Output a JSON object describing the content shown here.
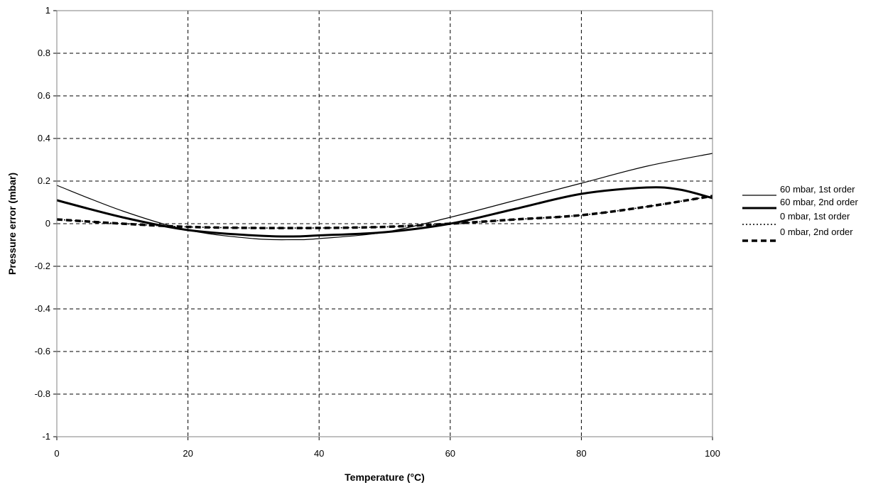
{
  "chart_data": {
    "type": "line",
    "title": "",
    "xlabel": "Temperature (°C)",
    "ylabel": "Pressure error (mbar)",
    "xlim": [
      0,
      100
    ],
    "ylim": [
      -1,
      1
    ],
    "xticks": [
      0,
      20,
      40,
      60,
      80,
      100
    ],
    "yticks": [
      -1,
      -0.8,
      -0.6,
      -0.4,
      -0.2,
      0,
      0.2,
      0.4,
      0.6,
      0.8,
      1
    ],
    "grid": true,
    "legend_position": "right",
    "series": [
      {
        "name": "60 mbar, 1st order",
        "style": "thin-solid",
        "x": [
          0,
          10,
          20,
          30,
          36,
          40,
          50,
          60,
          70,
          80,
          90,
          100
        ],
        "y": [
          0.18,
          0.06,
          -0.03,
          -0.07,
          -0.075,
          -0.07,
          -0.04,
          0.03,
          0.11,
          0.19,
          0.27,
          0.33
        ]
      },
      {
        "name": "60 mbar, 2nd order",
        "style": "thick-solid",
        "x": [
          0,
          10,
          20,
          30,
          36,
          40,
          50,
          60,
          70,
          80,
          90,
          95,
          100
        ],
        "y": [
          0.11,
          0.03,
          -0.03,
          -0.055,
          -0.06,
          -0.055,
          -0.04,
          0.0,
          0.07,
          0.14,
          0.17,
          0.16,
          0.12
        ]
      },
      {
        "name": "0 mbar, 1st order",
        "style": "thin-dotted",
        "x": [
          0,
          10,
          20,
          30,
          40,
          50,
          60,
          70,
          80,
          90,
          100
        ],
        "y": [
          0.02,
          0.0,
          -0.015,
          -0.02,
          -0.02,
          -0.015,
          0.0,
          0.02,
          0.04,
          0.08,
          0.13
        ]
      },
      {
        "name": "0 mbar, 2nd order",
        "style": "thick-dashed",
        "x": [
          0,
          10,
          20,
          30,
          40,
          50,
          60,
          70,
          80,
          90,
          100
        ],
        "y": [
          0.02,
          0.0,
          -0.015,
          -0.02,
          -0.02,
          -0.015,
          0.0,
          0.02,
          0.04,
          0.08,
          0.13
        ]
      }
    ]
  }
}
